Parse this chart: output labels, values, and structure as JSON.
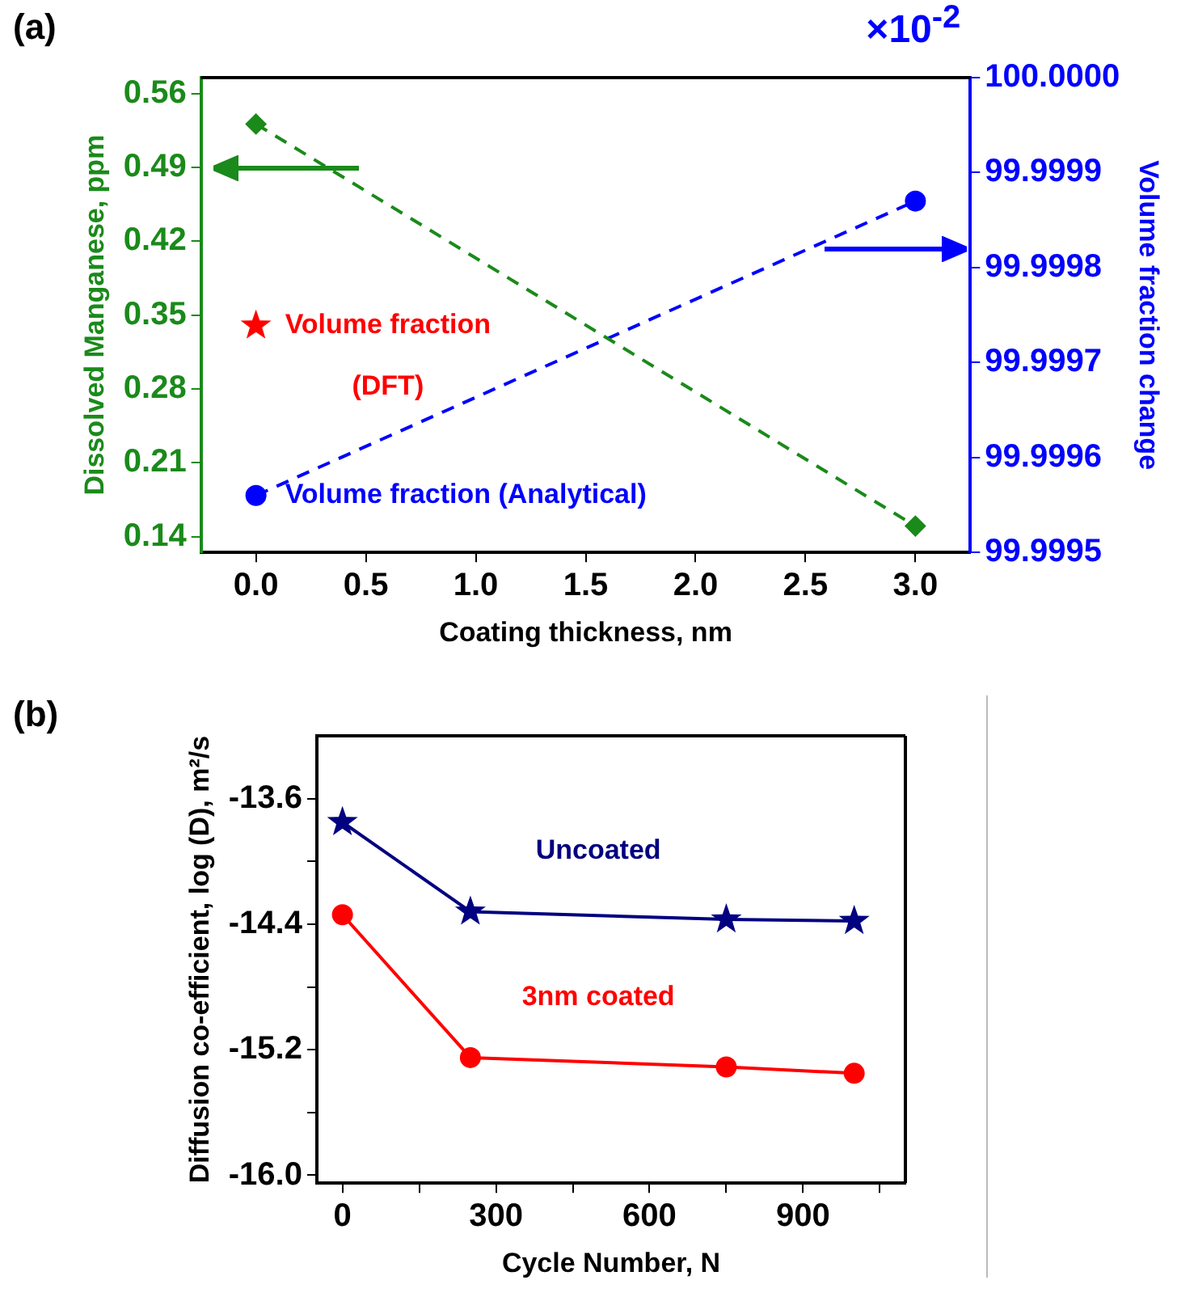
{
  "chart_data": [
    {
      "type": "line",
      "annotations": [
        "(a)",
        "×10$^{-2}$"
      ],
      "xlabel": "Coating thickness, nm",
      "ylabel": "Dissolved Manganese, ppm",
      "y2label": "Volume fraction change",
      "xlim": [
        -0.25,
        3.25
      ],
      "xticks": [
        {
          "value": 0,
          "label": "0.0"
        },
        {
          "value": 0.5,
          "label": "0.5"
        },
        {
          "value": 1,
          "label": "1.0"
        },
        {
          "value": 1.5,
          "label": "1.5"
        },
        {
          "value": 2,
          "label": "2.0"
        },
        {
          "value": 2.5,
          "label": "2.5"
        },
        {
          "value": 3,
          "label": "3.0"
        }
      ],
      "ylim": [
        0.125,
        0.575
      ],
      "yticks": [
        0.14,
        0.21,
        0.28,
        0.35,
        0.42,
        0.49,
        0.56
      ],
      "y2lim": [
        99.9995,
        100
      ],
      "y2ticks": [
        {
          "value": 99.9995,
          "label": "99.9995"
        },
        {
          "value": 99.9996,
          "label": "99.9996"
        },
        {
          "value": 99.9997,
          "label": "99.9997"
        },
        {
          "value": 99.9998,
          "label": "99.9998"
        },
        {
          "value": 99.9999,
          "label": "99.9999"
        },
        {
          "value": 100,
          "label": "100.0000"
        }
      ],
      "series": [
        {
          "color": "#1a8a1a",
          "x": [
            0,
            3
          ],
          "values": [
            0.531,
            0.15
          ],
          "marker": "diamond",
          "line_style": "dashed"
        },
        {
          "name": "Volume fraction (Analytical)",
          "color": "#0000ff",
          "axis": "y2",
          "x": [
            0,
            3
          ],
          "values": [
            99.99956,
            99.99987
          ],
          "marker": "circle",
          "line_style": "dashed"
        },
        {
          "type": "scatter",
          "name": "Volume fraction (DFT)",
          "color": "#ff0000",
          "x": [
            0
          ],
          "values": [
            0.34
          ],
          "marker": "star"
        }
      ]
    },
    {
      "type": "line",
      "annotations": [
        "(b)"
      ],
      "xlabel": "Cycle Number, N",
      "ylabel": "Diffusion co-efficient, log (D), m²/s",
      "xlim": [
        -50,
        1100
      ],
      "xticks": [
        0,
        {
          "value": 150,
          "label": null
        },
        300,
        {
          "value": 450,
          "label": null
        },
        600,
        {
          "value": 750,
          "label": null
        },
        900,
        {
          "value": 1050,
          "label": null
        }
      ],
      "ylim": [
        -16.05,
        -13.2
      ],
      "yticks": [
        {
          "value": -16,
          "label": "-16.0"
        },
        {
          "value": -15.6,
          "label": null
        },
        -15.2,
        {
          "value": -14.8,
          "label": null
        },
        -14.4,
        {
          "value": -14,
          "label": null
        },
        -13.6
      ],
      "series": [
        {
          "name": "Uncoated",
          "color": "#000080",
          "x": [
            0,
            250,
            750,
            1000
          ],
          "values": [
            -13.75,
            -14.32,
            -14.37,
            -14.38
          ],
          "marker": "star",
          "line_style": "solid"
        },
        {
          "name": "3nm coated",
          "color": "#ff0000",
          "x": [
            0,
            250,
            750,
            1000
          ],
          "values": [
            -14.34,
            -15.25,
            -15.31,
            -15.35
          ],
          "marker": "circle",
          "line_style": "solid"
        }
      ]
    }
  ]
}
